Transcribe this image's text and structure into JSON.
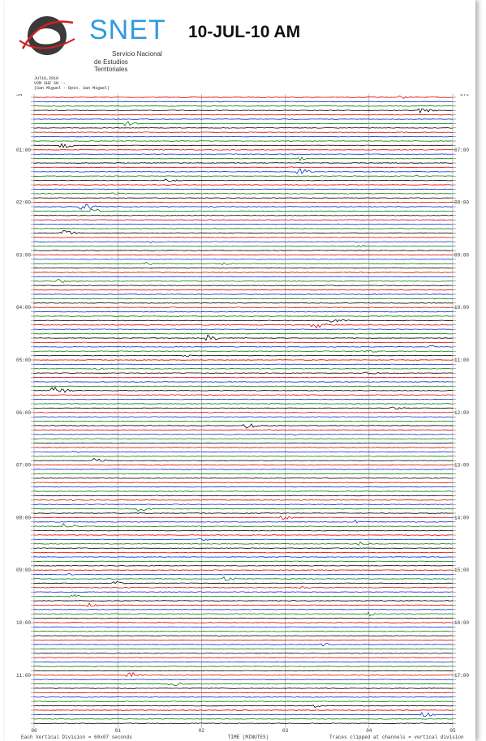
{
  "logo": {
    "name": "SNET",
    "org_line1": "Servicio Nacional",
    "org_line2": "de Estudios Territoriales"
  },
  "title": "10-JUL-10 AM",
  "header_info": [
    "Jul10,2010",
    "VSM SHZ SN --",
    "(San Miguel - Dpto. San Miguel)"
  ],
  "left_hour_labels": [
    "01:00",
    "02:00",
    "03:00",
    "04:00",
    "05:00",
    "06:00",
    "07:00",
    "08:00",
    "09:00",
    "10:00",
    "11:00"
  ],
  "right_hour_labels": [
    "07:00",
    "08:00",
    "09:00",
    "10:00",
    "11:00",
    "12:00",
    "13:00",
    "14:00",
    "15:00",
    "16:00",
    "17:00"
  ],
  "corner_left": "SN",
  "corner_right": "UTC",
  "minute_ticks": [
    "00",
    "01",
    "02",
    "03",
    "04",
    "05"
  ],
  "footer": {
    "left": "Each Vertical Division = 60x07 seconds",
    "center": "TIME (MINUTES)",
    "right": "Traces clipped at channels = vertical division"
  },
  "colors": [
    "#e00000",
    "#0030d0",
    "#0a7a0a",
    "#000000"
  ]
}
